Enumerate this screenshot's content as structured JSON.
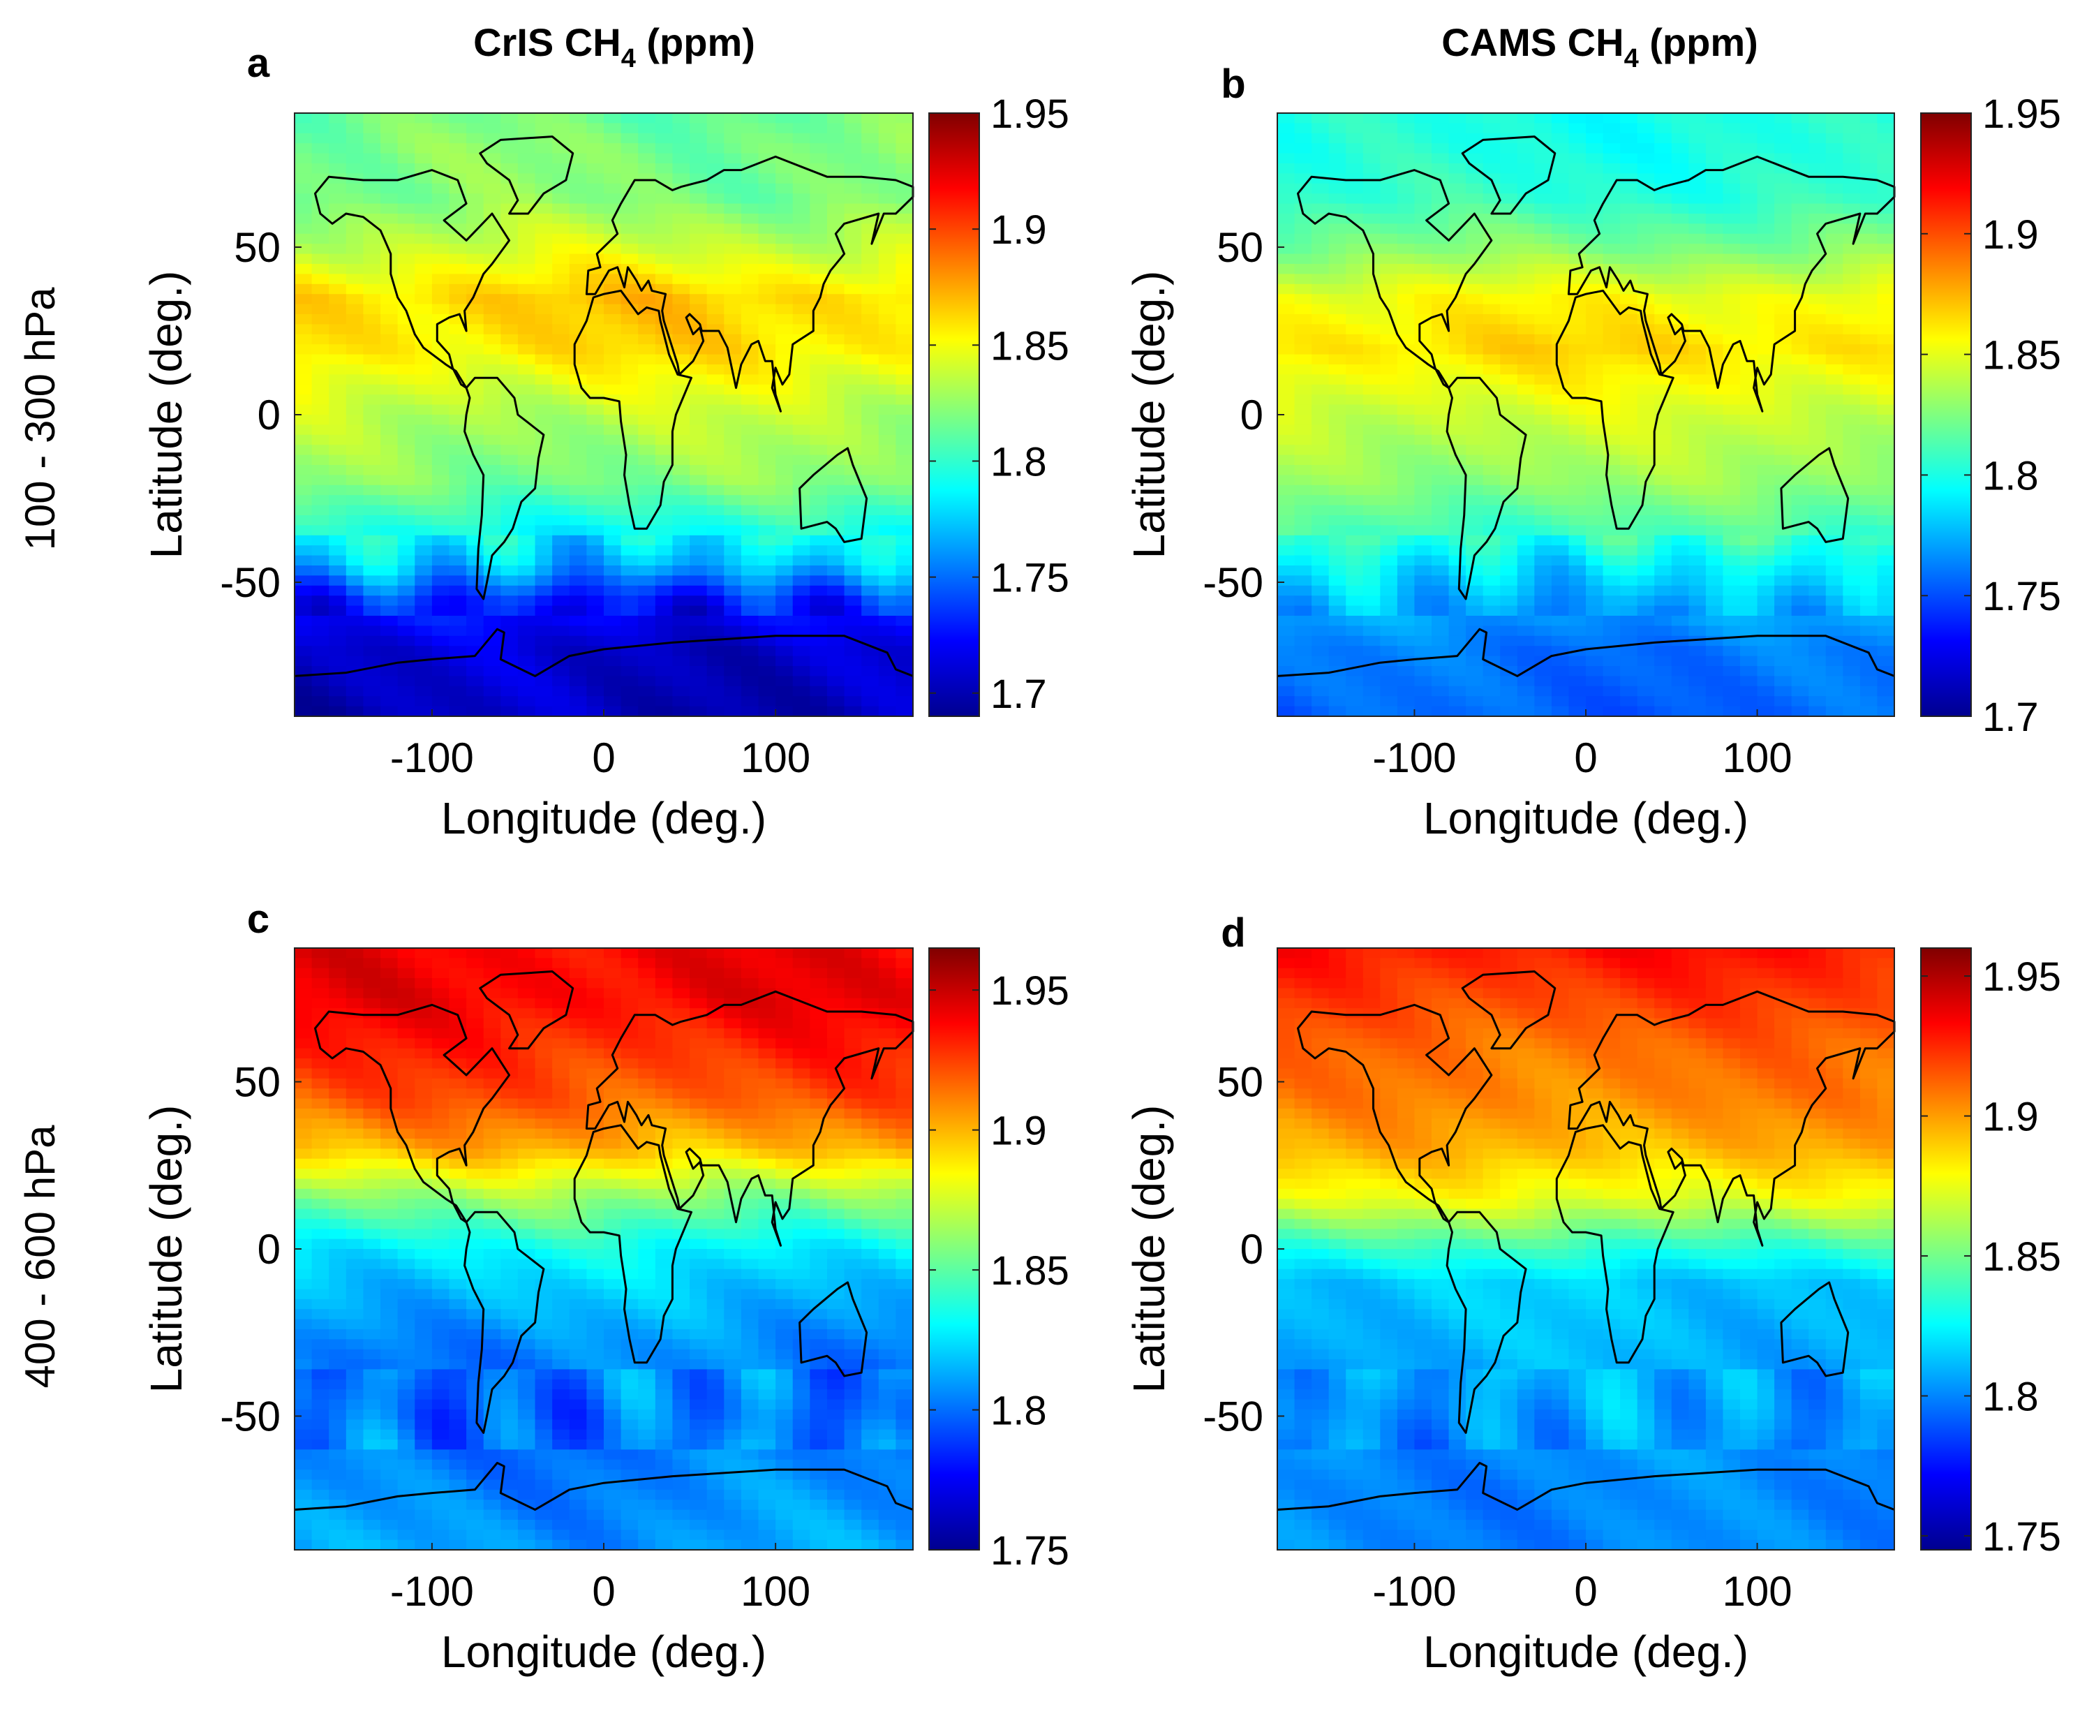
{
  "column_titles": {
    "left": "CrIS CH",
    "left_sub": "4",
    "left_unit": " (ppm)",
    "right": "CAMS CH",
    "right_sub": "4",
    "right_unit": " (ppm)"
  },
  "row_labels": [
    "100 - 300 hPa",
    "400 - 600 hPa"
  ],
  "chart_data": [
    {
      "type": "heatmap",
      "panel": "a",
      "title": "CrIS CH4 (ppm)",
      "row_label": "100 - 300 hPa",
      "xlabel": "Longitude (deg.)",
      "ylabel": "Latitude (deg.)",
      "xlim": [
        -180,
        180
      ],
      "ylim": [
        -90,
        90
      ],
      "xticks": [
        -100,
        0,
        100
      ],
      "xtick_labels": [
        "-100",
        "0",
        "100"
      ],
      "yticks": [
        -50,
        0,
        50
      ],
      "ytick_labels": [
        "-50",
        "0",
        "50"
      ],
      "colorbar": {
        "min": 1.69,
        "max": 1.95,
        "ticks": [
          1.7,
          1.75,
          1.8,
          1.85,
          1.9,
          1.95
        ],
        "tick_labels": [
          "1.7",
          "1.75",
          "1.8",
          "1.85",
          "1.9",
          "1.95"
        ]
      },
      "zonal_profile": {
        "lat": [
          -90,
          -70,
          -55,
          -45,
          -35,
          -20,
          0,
          20,
          35,
          50,
          65,
          80,
          90
        ],
        "value": [
          1.705,
          1.71,
          1.73,
          1.77,
          1.79,
          1.82,
          1.835,
          1.86,
          1.865,
          1.84,
          1.82,
          1.82,
          1.815
        ]
      }
    },
    {
      "type": "heatmap",
      "panel": "b",
      "title": "CAMS CH4 (ppm)",
      "row_label": "100 - 300 hPa",
      "xlabel": "Longitude (deg.)",
      "ylabel": "Latitude (deg.)",
      "xlim": [
        -180,
        180
      ],
      "ylim": [
        -90,
        90
      ],
      "xticks": [
        -100,
        0,
        100
      ],
      "xtick_labels": [
        "-100",
        "0",
        "100"
      ],
      "yticks": [
        -50,
        0,
        50
      ],
      "ytick_labels": [
        "-50",
        "0",
        "50"
      ],
      "colorbar": {
        "min": 1.7,
        "max": 1.95,
        "ticks": [
          1.7,
          1.75,
          1.8,
          1.85,
          1.9,
          1.95
        ],
        "tick_labels": [
          "1.7",
          "1.75",
          "1.8",
          "1.85",
          "1.9",
          "1.95"
        ]
      },
      "zonal_profile": {
        "lat": [
          -90,
          -70,
          -55,
          -45,
          -35,
          -20,
          0,
          20,
          35,
          50,
          65,
          80,
          90
        ],
        "value": [
          1.755,
          1.76,
          1.775,
          1.79,
          1.81,
          1.83,
          1.845,
          1.865,
          1.855,
          1.825,
          1.805,
          1.8,
          1.8
        ]
      }
    },
    {
      "type": "heatmap",
      "panel": "c",
      "title": "CrIS CH4 (ppm)",
      "row_label": "400 - 600 hPa",
      "xlabel": "Longitude (deg.)",
      "ylabel": "Latitude (deg.)",
      "xlim": [
        -180,
        180
      ],
      "ylim": [
        -90,
        90
      ],
      "xticks": [
        -100,
        0,
        100
      ],
      "xtick_labels": [
        "-100",
        "0",
        "100"
      ],
      "yticks": [
        -50,
        0,
        50
      ],
      "ytick_labels": [
        "-50",
        "0",
        "50"
      ],
      "colorbar": {
        "min": 1.75,
        "max": 1.965,
        "ticks": [
          1.75,
          1.8,
          1.85,
          1.9,
          1.95
        ],
        "tick_labels": [
          "1.75",
          "1.8",
          "1.85",
          "1.9",
          "1.95"
        ]
      },
      "zonal_profile": {
        "lat": [
          -90,
          -70,
          -50,
          -30,
          -10,
          0,
          15,
          30,
          45,
          60,
          75,
          90
        ],
        "value": [
          1.81,
          1.805,
          1.8,
          1.805,
          1.82,
          1.83,
          1.86,
          1.9,
          1.92,
          1.93,
          1.94,
          1.94
        ]
      }
    },
    {
      "type": "heatmap",
      "panel": "d",
      "title": "CAMS CH4 (ppm)",
      "row_label": "400 - 600 hPa",
      "xlabel": "Longitude (deg.)",
      "ylabel": "Latitude (deg.)",
      "xlim": [
        -180,
        180
      ],
      "ylim": [
        -90,
        90
      ],
      "xticks": [
        -100,
        0,
        100
      ],
      "xtick_labels": [
        "-100",
        "0",
        "100"
      ],
      "yticks": [
        -50,
        0,
        50
      ],
      "ytick_labels": [
        "-50",
        "0",
        "50"
      ],
      "colorbar": {
        "min": 1.745,
        "max": 1.96,
        "ticks": [
          1.75,
          1.8,
          1.85,
          1.9,
          1.95
        ],
        "tick_labels": [
          "1.75",
          "1.8",
          "1.85",
          "1.9",
          "1.95"
        ]
      },
      "zonal_profile": {
        "lat": [
          -90,
          -70,
          -50,
          -30,
          -10,
          0,
          15,
          30,
          45,
          60,
          75,
          90
        ],
        "value": [
          1.8,
          1.8,
          1.805,
          1.81,
          1.815,
          1.835,
          1.875,
          1.895,
          1.905,
          1.91,
          1.92,
          1.93
        ]
      }
    }
  ]
}
